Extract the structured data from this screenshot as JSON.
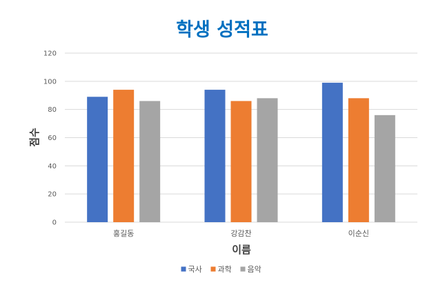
{
  "chart_data": {
    "type": "bar",
    "title": "학생 성적표",
    "xlabel": "이름",
    "ylabel": "점수",
    "categories": [
      "홍길동",
      "강감찬",
      "이순신"
    ],
    "series": [
      {
        "name": "국사",
        "color": "#4472C4",
        "values": [
          89,
          94,
          99
        ]
      },
      {
        "name": "과학",
        "color": "#ED7D31",
        "values": [
          94,
          86,
          88
        ]
      },
      {
        "name": "음악",
        "color": "#A5A5A5",
        "values": [
          86,
          88,
          76
        ]
      }
    ],
    "ylim": [
      0,
      120
    ],
    "yticks": [
      0,
      20,
      40,
      60,
      80,
      100,
      120
    ],
    "grid": true,
    "legend_position": "bottom",
    "colors": {
      "title": "#0070C0",
      "grid": "#D9D9D9"
    }
  }
}
